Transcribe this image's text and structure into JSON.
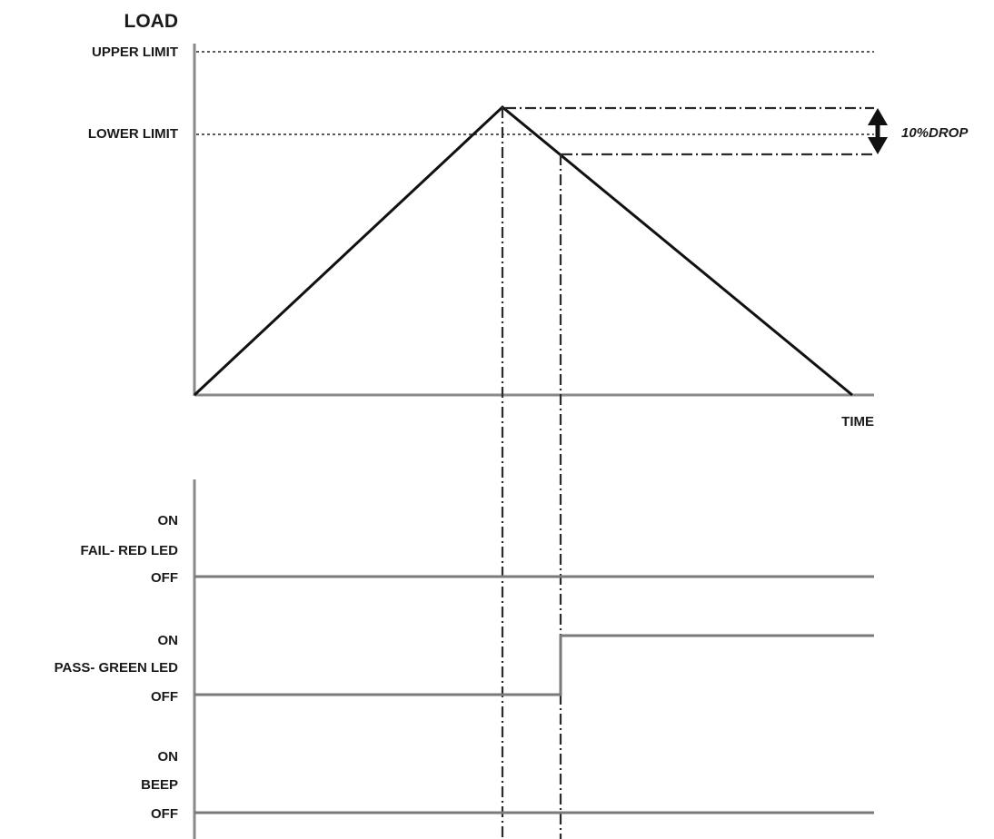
{
  "diagram": {
    "load_axis_label": "LOAD",
    "upper_limit_label": "UPPER LIMIT",
    "lower_limit_label": "LOWER LIMIT",
    "drop_label": "10%DROP",
    "time_axis_label": "TIME",
    "signals": [
      {
        "name": "FAIL- RED LED",
        "on_label": "ON",
        "off_label": "OFF",
        "state_after_drop": "off"
      },
      {
        "name": "PASS- GREEN LED",
        "on_label": "ON",
        "off_label": "OFF",
        "state_after_drop": "on"
      },
      {
        "name": "BEEP",
        "on_label": "ON",
        "off_label": "OFF",
        "state_after_drop": "off"
      }
    ]
  }
}
